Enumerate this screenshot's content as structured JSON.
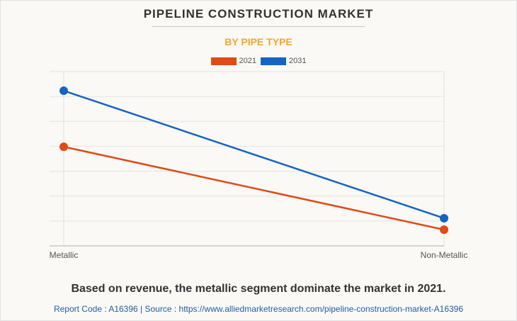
{
  "header": {
    "title": "PIPELINE CONSTRUCTION MARKET",
    "subtitle": "BY PIPE TYPE"
  },
  "footer": {
    "caption": "Based on revenue, the metallic segment dominate the market in 2021.",
    "source": "Report Code : A16396  |  Source : https://www.alliedmarketresearch.com/pipeline-construction-market-A16396"
  },
  "chart_data": {
    "type": "line",
    "title": "PIPELINE CONSTRUCTION MARKET",
    "subtitle": "BY PIPE TYPE",
    "categories": [
      "Metallic",
      "Non-Metallic"
    ],
    "series": [
      {
        "name": "2021",
        "color": "#e04a17",
        "values": [
          39.8,
          6.5
        ]
      },
      {
        "name": "2031",
        "color": "#1565c0",
        "values": [
          62.3,
          11.1
        ]
      }
    ],
    "xlabel": "",
    "ylabel": "",
    "ylim": [
      0,
      70
    ],
    "y_gridlines": 7,
    "y_tick_labels_shown": false,
    "units_note": "relative (no y-axis labels shown)",
    "grid": true,
    "legend": "top-center"
  }
}
